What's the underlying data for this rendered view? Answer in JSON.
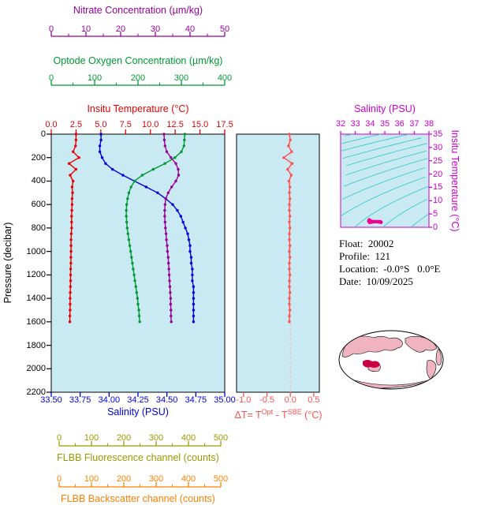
{
  "colors": {
    "nitrate": "#990099",
    "oxygen": "#009933",
    "temperature": "#e80000",
    "salinity": "#0000dd",
    "pressure": "#000000",
    "fluorescence": "#999900",
    "backscatter": "#ff8000",
    "delta_t": "#ff5050",
    "ts_axis": "#cc00cc",
    "ts_points": "#ee0090",
    "isopycnal": "#2cc8c8",
    "panel_bg": "#c9e9f3",
    "map_land": "#f0b4c0",
    "map_marker": "#c80045"
  },
  "axes": {
    "nitrate": {
      "title": "Nitrate Concentration (µm/kg)",
      "range": [
        0,
        50
      ],
      "ticks": [
        "0",
        "10",
        "20",
        "30",
        "40",
        "50"
      ]
    },
    "oxygen": {
      "title": "Optode Oxygen Concentration (µm/kg)",
      "range": [
        0,
        400
      ],
      "ticks": [
        "0",
        "100",
        "200",
        "300",
        "400"
      ]
    },
    "temperature": {
      "title": "Insitu Temperature (°C)",
      "range": [
        0,
        17.5
      ],
      "ticks": [
        "0.0",
        "2.5",
        "5.0",
        "7.5",
        "10.0",
        "12.5",
        "15.0",
        "17.5"
      ]
    },
    "pressure": {
      "title": "Pressure (decibar)",
      "range": [
        0,
        2200
      ],
      "ticks": [
        "0",
        "200",
        "400",
        "600",
        "800",
        "1000",
        "1200",
        "1400",
        "1600",
        "1800",
        "2000",
        "2200"
      ]
    },
    "salinity": {
      "title": "Salinity (PSU)",
      "range": [
        33.5,
        35.0
      ],
      "ticks": [
        "33.50",
        "33.75",
        "34.00",
        "34.25",
        "34.50",
        "34.75",
        "35.00"
      ]
    },
    "fluorescence": {
      "title": "FLBB Fluorescence channel (counts)",
      "range": [
        0,
        500
      ],
      "ticks": [
        "0",
        "100",
        "200",
        "300",
        "400",
        "500"
      ]
    },
    "backscatter": {
      "title": "FLBB Backscatter channel (counts)",
      "range": [
        0,
        500
      ],
      "ticks": [
        "0",
        "100",
        "200",
        "300",
        "400",
        "500"
      ]
    },
    "delta_t": {
      "title_prefix": "ΔT= T",
      "title_sup1": "Opt",
      "title_mid": " - T",
      "title_sup2": "SBE",
      "title_suffix": " (°C)",
      "range": [
        -1.0,
        0.5
      ],
      "ticks": [
        "-1.0",
        "-0.5",
        "0.0",
        "0.5"
      ]
    },
    "ts_salinity": {
      "title": "Salinity (PSU)",
      "range": [
        32,
        38
      ],
      "ticks": [
        "32",
        "33",
        "34",
        "35",
        "36",
        "37",
        "38"
      ]
    },
    "ts_temperature": {
      "title": "Insitu Temperature (°C)",
      "range": [
        0,
        35
      ],
      "ticks": [
        "0",
        "5",
        "10",
        "15",
        "20",
        "25",
        "30",
        "35"
      ]
    }
  },
  "info": {
    "lines": [
      "Float:  20002",
      "Profile:  121",
      "Location:  -0.0°S   0.0°E",
      "Date:  10/09/2025"
    ]
  },
  "chart_data": [
    {
      "name": "main-profile-plot",
      "type": "line",
      "title": "",
      "ylabel": "Pressure (decibar)",
      "ylim": [
        0,
        2200
      ],
      "grid": false,
      "pressure_dbar": [
        0,
        50,
        100,
        150,
        200,
        250,
        300,
        350,
        400,
        450,
        500,
        550,
        600,
        650,
        700,
        750,
        800,
        850,
        900,
        950,
        1000,
        1050,
        1100,
        1150,
        1200,
        1250,
        1300,
        1350,
        1400,
        1450,
        1500,
        1550,
        1600
      ],
      "series": [
        {
          "name": "Insitu Temperature (°C)",
          "color_key": "temperature",
          "axis_range": [
            0,
            17.5
          ],
          "values": [
            2.5,
            2.5,
            2.45,
            2.2,
            2.8,
            1.8,
            2.5,
            1.9,
            2.2,
            2.1,
            2.15,
            2.1,
            2.1,
            2.08,
            2.05,
            2.05,
            2.05,
            2.02,
            2.0,
            2.0,
            2.0,
            1.98,
            1.98,
            1.96,
            1.95,
            1.95,
            1.93,
            1.92,
            1.9,
            1.9,
            1.9,
            1.88,
            1.88
          ]
        },
        {
          "name": "Salinity (PSU)",
          "color_key": "salinity",
          "axis_range": [
            33.5,
            35.0
          ],
          "values": [
            33.93,
            33.93,
            33.92,
            33.92,
            33.94,
            33.97,
            34.03,
            34.12,
            34.22,
            34.32,
            34.42,
            34.49,
            34.55,
            34.59,
            34.62,
            34.64,
            34.66,
            34.68,
            34.69,
            34.7,
            34.7,
            34.71,
            34.71,
            34.72,
            34.72,
            34.72,
            34.73,
            34.73,
            34.73,
            34.73,
            34.73,
            34.73,
            34.73
          ]
        },
        {
          "name": "Optode Oxygen Concentration (µm/kg)",
          "color_key": "oxygen",
          "axis_range": [
            0,
            400
          ],
          "values": [
            308,
            307,
            306,
            300,
            285,
            262,
            235,
            210,
            192,
            184,
            179,
            176,
            174,
            173,
            173,
            174,
            175,
            177,
            179,
            181,
            183,
            185,
            187,
            189,
            191,
            193,
            195,
            197,
            199,
            200,
            202,
            203,
            204
          ]
        },
        {
          "name": "Nitrate Concentration (µm/kg)",
          "color_key": "nitrate",
          "axis_range": [
            0,
            50
          ],
          "values": [
            32.5,
            32.6,
            32.8,
            33.3,
            34.5,
            35.9,
            36.6,
            36.7,
            35.9,
            34.7,
            33.7,
            33.0,
            32.8,
            32.7,
            32.7,
            32.8,
            32.9,
            33.1,
            33.2,
            33.4,
            33.5,
            33.7,
            33.8,
            33.9,
            34.0,
            34.1,
            34.2,
            34.3,
            34.4,
            34.4,
            34.5,
            34.5,
            34.6
          ]
        }
      ]
    },
    {
      "name": "delta-t-plot",
      "type": "line",
      "title": "",
      "xlabel": "ΔT= T(Opt) - T(SBE) (°C)",
      "xlim": [
        -1.0,
        0.5
      ],
      "ylim": [
        0,
        2200
      ],
      "pressure_dbar": [
        0,
        50,
        100,
        150,
        200,
        250,
        300,
        350,
        400,
        450,
        500,
        550,
        600,
        650,
        700,
        750,
        800,
        850,
        900,
        950,
        1000,
        1050,
        1100,
        1150,
        1200,
        1250,
        1300,
        1350,
        1400,
        1450,
        1500,
        1550,
        1600
      ],
      "values": [
        -0.02,
        0.0,
        -0.04,
        0.03,
        -0.14,
        0.04,
        -0.06,
        0.02,
        -0.03,
        -0.01,
        -0.02,
        -0.01,
        -0.02,
        -0.02,
        -0.01,
        -0.02,
        -0.01,
        -0.02,
        -0.02,
        -0.01,
        -0.02,
        -0.01,
        -0.02,
        -0.02,
        -0.01,
        -0.02,
        -0.02,
        -0.01,
        -0.02,
        -0.02,
        -0.01,
        -0.02,
        -0.02
      ]
    },
    {
      "name": "ts-diagram",
      "type": "scatter",
      "title": "",
      "xlabel": "Salinity (PSU)",
      "ylabel": "Insitu Temperature (°C)",
      "xlim": [
        32,
        38
      ],
      "ylim": [
        0,
        35
      ],
      "isopycnal_levels": [
        13,
        14.5,
        16,
        17.5,
        19,
        20.5,
        22,
        23.5,
        25,
        26.5,
        28,
        29.5
      ],
      "points_note": "scatter points are the (salinity, temperature) pairs of the main profile series"
    }
  ]
}
